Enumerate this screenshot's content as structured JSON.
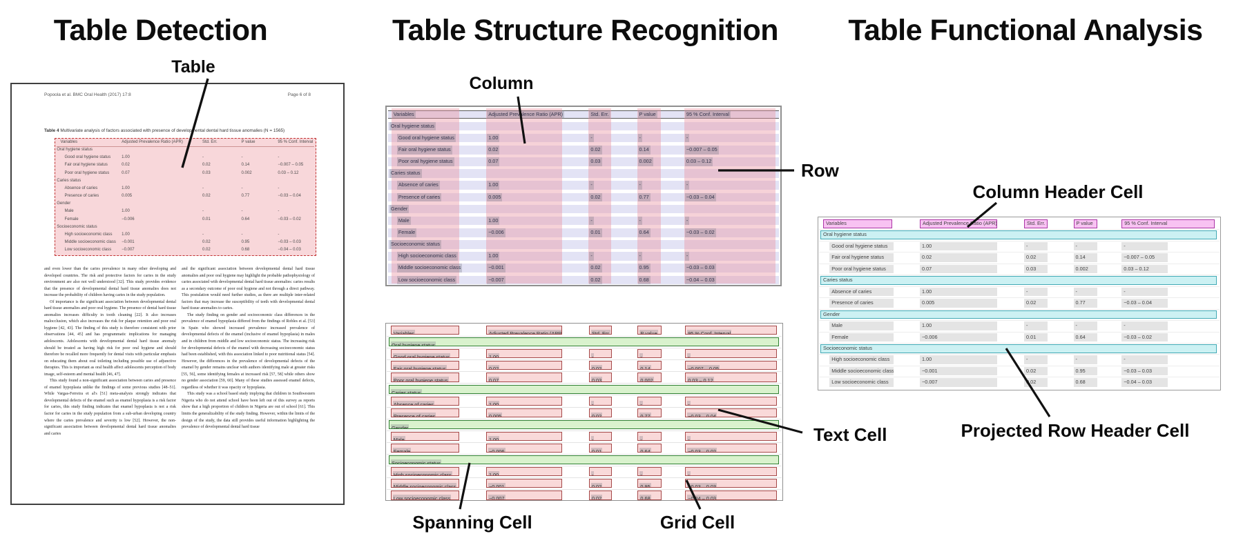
{
  "panels": {
    "detection": {
      "title": "Table Detection",
      "callout": "Table"
    },
    "structure": {
      "title": "Table Structure Recognition",
      "callouts": {
        "column": "Column",
        "row": "Row",
        "spanning": "Spanning Cell",
        "grid": "Grid Cell",
        "text": "Text Cell"
      }
    },
    "functional": {
      "title": "Table Functional Analysis",
      "callouts": {
        "column_header": "Column Header Cell",
        "projected_row_header": "Projected Row Header Cell"
      }
    }
  },
  "document": {
    "header_left": "Popoola et al. BMC Oral Health  (2017) 17:8",
    "header_right": "Page 6 of 8",
    "caption_bold": "Table 4",
    "caption_rest": " Multivariate analysis of factors associated with presence of developmental dental hard tissue anomalies (N = 1565)",
    "left_column": [
      "and even lower than the caries prevalence in many other developing and developed countries. The risk and protective factors for caries in the study environment are also not well understood [32]. This study provides evidence that the presence of developmental dental hard tissue anomalies does not increase the probability of children having caries in the study population.",
      "Of importance is the significant association between developmental dental hard tissue anomalies and poor oral hygiene. The presence of dental hard tissue anomalies increases difficulty in tooth cleaning [22]. It also increases malocclusion, which also increases the risk for plaque retention and poor oral hygiene [42, 43]. The finding of this study is therefore consistent with prior observations [44, 45] and has programmatic implications for managing adolescents. Adolescents with developmental dental hard tissue anomaly should be treated as having high risk for poor oral hygiene and should therefore be recalled more frequently for dental visits with particular emphasis on educating them about oral toileting including possible use of adjunctive therapies. This is important as oral health affect adolescents perception of body image, self-esteem and mental health [46, 47].",
      "This study found a non-significant association between caries and presence of enamel hypoplasia unlike the findings of some previous studies [48–51]. While Vargas-Ferreira et al's [51] meta-analysis strongly indicates that developmental defects of the enamel such as enamel hypoplasia is a risk factor for caries, this study finding indicates that enamel hypoplasia is not a risk factor for caries in the study population from a sub-urban developing country where the caries prevalence and severity is low [52]. However, the non-significant association between developmental dental hard tissue anomalies and caries"
    ],
    "right_column": [
      "and the significant association between developmental dental hard tissue anomalies and poor oral hygiene may highlight the probable pathophysiology of caries associated with developmental dental hard tissue anomalies: caries results as a secondary outcome of poor oral hygiene and not through a direct pathway. This postulation would need further studies, as there are multiple inter-related factors that may increase the susceptibility of teeth with developmental dental hard tissue anomalies to caries.",
      "The study finding on gender and socioeconomic class differences in the prevalence of enamel hypoplasia differed from the findings of Robles et al. [53] in Spain who showed increased prevalence increased prevalence of developmental defects of the enamel (inclusive of enamel hypoplasia) in males and in children from middle and low socioeconomic status. The increasing risk for developmental defects of the enamel with decreasing socioeconomic status had been established, with this association linked to poor nutritional status [54]. However, the differences in the prevalence of developmental defects of the enamel by gender remains unclear with authors identifying male at greater risks [55, 56], some identifying females at increased risk [57, 58] while others show no gender association [59, 60]. Many of these studies assessed enamel defects, regardless of whether it was opacity or hypoplasia.",
      "This study was a school based study implying that children in Southwestern Nigeria who do not attend school have been left out of this survey as reports show that a high proportion of children in Nigeria are out of school [61]. This limits the generalizability of the study finding. However, within the limits of the design of the study, the data still provides useful information highlighting the prevalence of developmental dental hard tissue"
    ]
  },
  "table": {
    "headers": [
      "Variables",
      "Adjusted Prevalence Ratio (APR)",
      "Std. Err.",
      "P value",
      "95 % Conf. Interval"
    ],
    "column_fractions": [
      [
        0.012,
        0.173
      ],
      [
        0.253,
        0.192
      ],
      [
        0.513,
        0.058
      ],
      [
        0.636,
        0.06
      ],
      [
        0.756,
        0.232
      ]
    ],
    "rows": [
      {
        "type": "section",
        "label": "Oral hygiene status"
      },
      {
        "type": "data",
        "cells": [
          "Good oral hygiene status",
          "1.00",
          "-",
          "-",
          "-"
        ]
      },
      {
        "type": "data",
        "cells": [
          "Fair oral hygiene status",
          "0.02",
          "0.02",
          "0.14",
          "−0.007 – 0.05"
        ]
      },
      {
        "type": "data",
        "cells": [
          "Poor oral hygiene status",
          "0.07",
          "0.03",
          "0.002",
          "0.03 – 0.12"
        ]
      },
      {
        "type": "section",
        "label": "Caries status"
      },
      {
        "type": "data",
        "cells": [
          "Absence of caries",
          "1.00",
          "-",
          "-",
          "-"
        ]
      },
      {
        "type": "data",
        "cells": [
          "Presence of caries",
          "0.005",
          "0.02",
          "0.77",
          "−0.03 – 0.04"
        ]
      },
      {
        "type": "section",
        "label": "Gender"
      },
      {
        "type": "data",
        "cells": [
          "Male",
          "1.00",
          "-",
          "-",
          "-"
        ]
      },
      {
        "type": "data",
        "cells": [
          "Female",
          "−0.006",
          "0.01",
          "0.64",
          "−0.03 – 0.02"
        ]
      },
      {
        "type": "section",
        "label": "Socioeconomic status"
      },
      {
        "type": "data",
        "cells": [
          "High socioeconomic class",
          "1.00",
          "-",
          "-",
          "-"
        ]
      },
      {
        "type": "data",
        "cells": [
          "Middle socioeconomic class",
          "−0.001",
          "0.02",
          "0.95",
          "−0.03 – 0.03"
        ]
      },
      {
        "type": "data",
        "cells": [
          "Low socioeconomic class",
          "−0.007",
          "0.02",
          "0.68",
          "−0.04 – 0.03"
        ]
      }
    ]
  },
  "colors": {
    "detection_fill": "rgba(240,166,172,0.45)",
    "detection_border": "#c03030",
    "row_band": "#e3e3f5",
    "column_band": "rgba(233,148,161,0.42)",
    "text_highlight": "rgba(120,120,128,0.30)",
    "grid_cell_fill": "#f9d9d9",
    "grid_cell_border": "#a54848",
    "spanning_fill": "#d9f2cd",
    "spanning_border": "#2f8032",
    "column_header_fill": "#f8c2f2",
    "column_header_border": "#ab35a5",
    "projected_row_header_fill": "#ccf1f3",
    "projected_row_header_border": "#41a9b5"
  }
}
